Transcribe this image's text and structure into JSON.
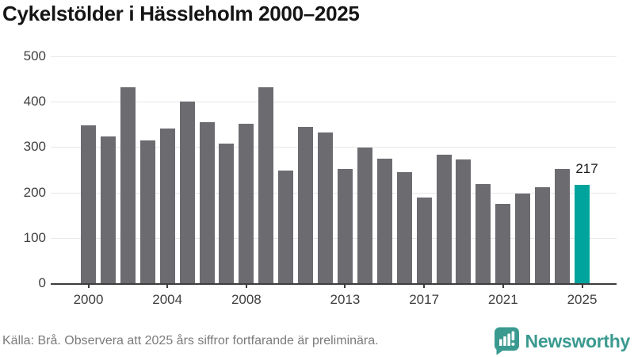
{
  "title": "Cykelstölder i Hässleholm 2000–2025",
  "chart_data": {
    "type": "bar",
    "title": "Cykelstölder i Hässleholm 2000–2025",
    "x": [
      2000,
      2001,
      2002,
      2003,
      2004,
      2005,
      2006,
      2007,
      2008,
      2009,
      2010,
      2011,
      2012,
      2013,
      2014,
      2015,
      2016,
      2017,
      2018,
      2019,
      2020,
      2021,
      2022,
      2023,
      2024,
      2025
    ],
    "values": [
      348,
      323,
      432,
      315,
      341,
      400,
      355,
      307,
      352,
      432,
      249,
      345,
      333,
      252,
      299,
      274,
      244,
      188,
      283,
      272,
      218,
      175,
      198,
      212,
      252,
      217
    ],
    "xlabel": "",
    "ylabel": "",
    "ylim": [
      0,
      500
    ],
    "yticks": [
      0,
      100,
      200,
      300,
      400,
      500
    ],
    "xtick_labels": [
      "2000",
      "2004",
      "2008",
      "2013",
      "2017",
      "2021",
      "2025"
    ],
    "grid": true,
    "legend_position": "none",
    "highlight_year": 2025,
    "highlight_value_label": "217",
    "annotation_note": "last bar (2025) highlighted in teal with value label 217"
  },
  "colors": {
    "bar": "#6b6b70",
    "highlight": "#00a49c",
    "gridline": "#e8e8e8",
    "axis": "#3d3d3d",
    "axis_text": "#404040",
    "title_text": "#151515",
    "source_text": "#7b7b7b",
    "brand_teal": "#3a9a90"
  },
  "footer": {
    "source": "Källa: Brå. Observera att 2025 års siffror fortfarande är preliminära.",
    "brand": "Newsworthy"
  },
  "icons": {
    "logo": "newsworthy-speech-bubble-bar-chart-icon"
  }
}
